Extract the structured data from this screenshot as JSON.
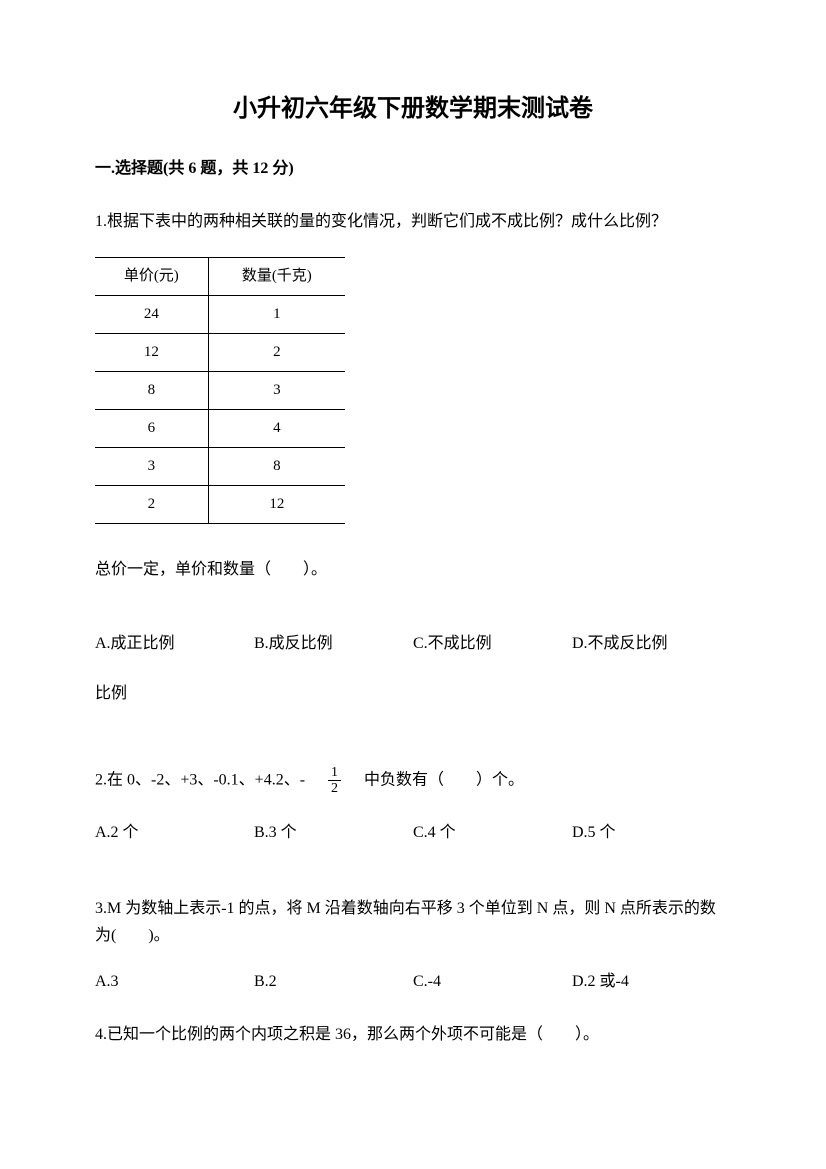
{
  "title": "小升初六年级下册数学期末测试卷",
  "section1": {
    "heading": "一.选择题(共 6 题，共 12 分)"
  },
  "q1": {
    "text": "1.根据下表中的两种相关联的量的变化情况，判断它们成不成比例？成什么比例？",
    "table": {
      "headers": [
        "单价(元)",
        "数量(千克)"
      ],
      "rows": [
        [
          "24",
          "1"
        ],
        [
          "12",
          "2"
        ],
        [
          "8",
          "3"
        ],
        [
          "6",
          "4"
        ],
        [
          "3",
          "8"
        ],
        [
          "2",
          "12"
        ]
      ]
    },
    "prompt": "总价一定，单价和数量（　　）。",
    "options": {
      "a": "A.成正比例",
      "b": "B.成反比例",
      "c": "C.不成比例",
      "d": "D.不成反比例"
    }
  },
  "q2": {
    "text_prefix": "2.在 0、-2、+3、-0.1、+4.2、-　",
    "frac_num": "1",
    "frac_den": "2",
    "text_suffix": "　中负数有（　　）个。",
    "options": {
      "a": "A.2 个",
      "b": "B.3 个",
      "c": "C.4 个",
      "d": "D.5 个"
    }
  },
  "q3": {
    "text": "3.M 为数轴上表示-1 的点，将 M 沿着数轴向右平移 3 个单位到 N 点，则 N 点所表示的数为(　　)。",
    "options": {
      "a": "A.3",
      "b": "B.2",
      "c": "C.-4",
      "d": "D.2 或-4"
    }
  },
  "q4": {
    "text": "4.已知一个比例的两个内项之积是 36，那么两个外项不可能是（　　）。"
  }
}
